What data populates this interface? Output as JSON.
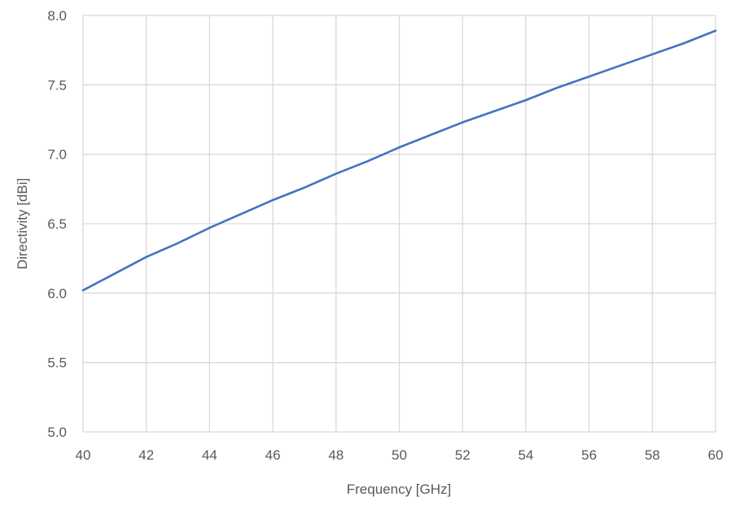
{
  "chart_data": {
    "type": "line",
    "title": "",
    "xlabel": "Frequency [GHz]",
    "ylabel": "Directivity [dBi]",
    "xlim": [
      40,
      60
    ],
    "ylim": [
      5.0,
      8.0
    ],
    "x_ticks": [
      40,
      42,
      44,
      46,
      48,
      50,
      52,
      54,
      56,
      58,
      60
    ],
    "x_tick_labels": [
      "40",
      "42",
      "44",
      "46",
      "48",
      "50",
      "52",
      "54",
      "56",
      "58",
      "60"
    ],
    "y_ticks": [
      5.0,
      5.5,
      6.0,
      6.5,
      7.0,
      7.5,
      8.0
    ],
    "y_tick_labels": [
      "5.0",
      "5.5",
      "6.0",
      "6.5",
      "7.0",
      "7.5",
      "8.0"
    ],
    "grid": true,
    "legend": "none",
    "series": [
      {
        "color": "#4472c4",
        "x": [
          40,
          41,
          42,
          43,
          44,
          45,
          46,
          47,
          48,
          49,
          50,
          51,
          52,
          53,
          54,
          55,
          56,
          57,
          58,
          59,
          60
        ],
        "y": [
          6.02,
          6.14,
          6.26,
          6.36,
          6.47,
          6.57,
          6.67,
          6.76,
          6.86,
          6.95,
          7.05,
          7.14,
          7.23,
          7.31,
          7.39,
          7.48,
          7.56,
          7.64,
          7.72,
          7.8,
          7.89
        ]
      }
    ]
  }
}
